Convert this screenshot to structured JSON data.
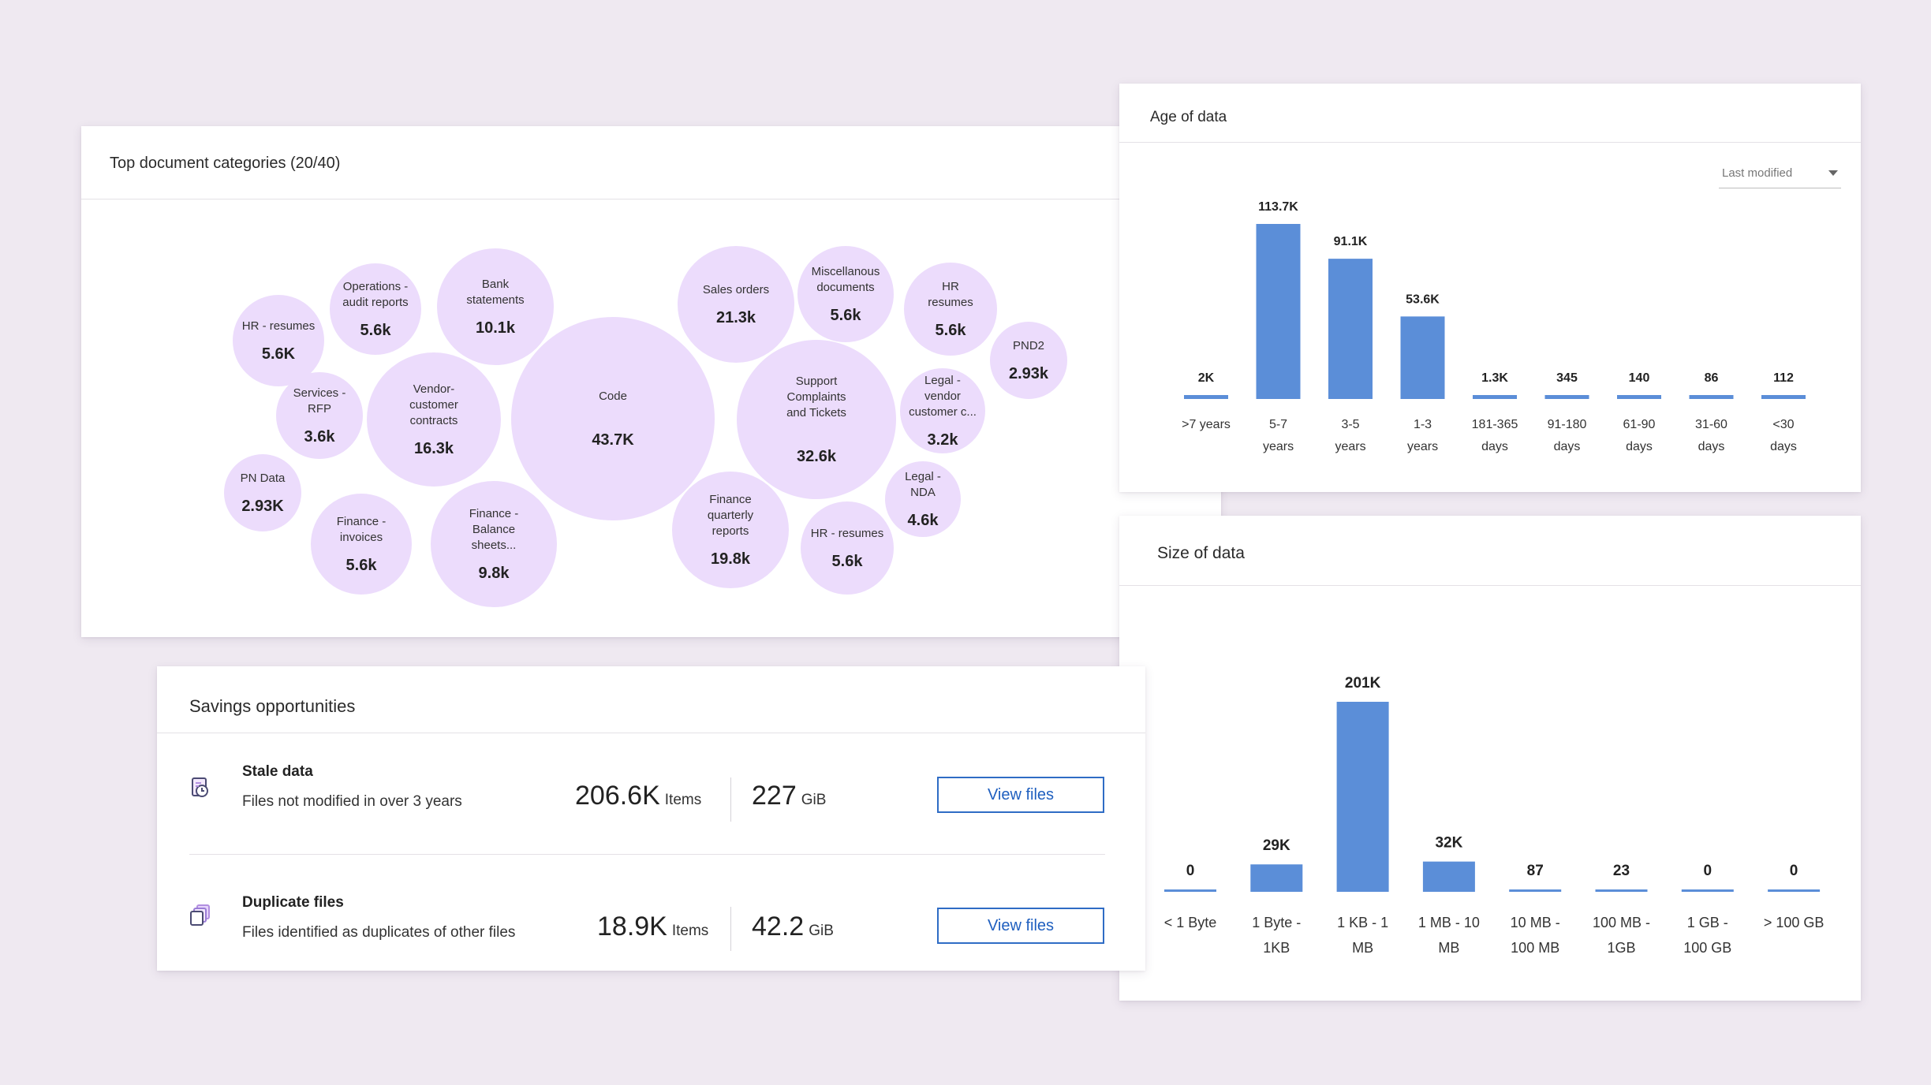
{
  "categories": {
    "title": "Top document categories (20/40)",
    "bubble_color": "#ecdcfc",
    "items": [
      {
        "label": "HR - resumes",
        "value": "5.6K"
      },
      {
        "label": "Operations -\naudit reports",
        "value": "5.6k"
      },
      {
        "label": "Bank\nstatements",
        "value": "10.1k"
      },
      {
        "label": "Services -\nRFP",
        "value": "3.6k"
      },
      {
        "label": "Vendor-\ncustomer\ncontracts",
        "value": "16.3k"
      },
      {
        "label": "Code",
        "value": "43.7K"
      },
      {
        "label": "PN Data",
        "value": "2.93K"
      },
      {
        "label": "Finance -\ninvoices",
        "value": "5.6k"
      },
      {
        "label": "Finance -\nBalance\nsheets...",
        "value": "9.8k"
      },
      {
        "label": "Sales orders",
        "value": "21.3k"
      },
      {
        "label": "Miscellanous\ndocuments",
        "value": "5.6k"
      },
      {
        "label": "HR\nresumes",
        "value": "5.6k"
      },
      {
        "label": "PND2",
        "value": "2.93k"
      },
      {
        "label": "Support\nComplaints\nand Tickets",
        "value": "32.6k"
      },
      {
        "label": "Legal -\nvendor\ncustomer c...",
        "value": "3.2k"
      },
      {
        "label": "Legal -\nNDA",
        "value": "4.6k"
      },
      {
        "label": "Finance\nquarterly\nreports",
        "value": "19.8k"
      },
      {
        "label": "HR - resumes",
        "value": "5.6k"
      }
    ]
  },
  "age": {
    "title": "Age of data",
    "filter": {
      "selected": "Last modified",
      "icon": "chevron-down-icon"
    },
    "chart_data": {
      "type": "bar",
      "categories": [
        ">7 years",
        "5-7 years",
        "3-5 years",
        "1-3 years",
        "181-365 days",
        "91-180 days",
        "61-90 days",
        "31-60 days",
        "<30 days"
      ],
      "category_lines": [
        [
          ">7 years"
        ],
        [
          "5-7",
          "years"
        ],
        [
          "3-5",
          "years"
        ],
        [
          "1-3",
          "years"
        ],
        [
          "181-365",
          "days"
        ],
        [
          "91-180",
          "days"
        ],
        [
          "61-90",
          "days"
        ],
        [
          "31-60",
          "days"
        ],
        [
          "<30",
          "days"
        ]
      ],
      "values": [
        2000,
        113700,
        91100,
        53600,
        1300,
        345,
        140,
        86,
        112
      ],
      "data_labels": [
        "2K",
        "113.7K",
        "91.1K",
        "53.6K",
        "1.3K",
        "345",
        "140",
        "86",
        "112"
      ],
      "ylim": [
        0,
        113700
      ],
      "bar_color": "#5b8ed8",
      "grid": false
    }
  },
  "size": {
    "title": "Size of data",
    "chart_data": {
      "type": "bar",
      "categories": [
        "< 1 Byte",
        "1 Byte - 1KB",
        "1 KB - 1 MB",
        "1 MB - 10 MB",
        "10 MB - 100 MB",
        "100 MB - 1GB",
        "1 GB - 100 GB",
        "> 100 GB"
      ],
      "category_lines": [
        [
          "< 1 Byte"
        ],
        [
          "1 Byte -",
          "1KB"
        ],
        [
          "1 KB - 1",
          "MB"
        ],
        [
          "1 MB - 10",
          "MB"
        ],
        [
          "10 MB -",
          "100 MB"
        ],
        [
          "100 MB -",
          "1GB"
        ],
        [
          "1 GB -",
          "100 GB"
        ],
        [
          "> 100 GB"
        ]
      ],
      "values": [
        0,
        29000,
        201000,
        32000,
        87,
        23,
        0,
        0
      ],
      "data_labels": [
        "0",
        "29K",
        "201K",
        "32K",
        "87",
        "23",
        "0",
        "0"
      ],
      "ylim": [
        0,
        201000
      ],
      "bar_color": "#5b8ed8",
      "grid": false
    }
  },
  "savings": {
    "title": "Savings opportunities",
    "rows": [
      {
        "icon": "stale-data-icon",
        "name": "Stale data",
        "description": "Files not modified in over 3 years",
        "items_value": "206.6K",
        "items_unit": "Items",
        "size_value": "227",
        "size_unit": "GiB",
        "button": "View files"
      },
      {
        "icon": "duplicate-files-icon",
        "name": "Duplicate files",
        "description": "Files identified as duplicates of other files",
        "items_value": "18.9K",
        "items_unit": "Items",
        "size_value": "42.2",
        "size_unit": "GiB",
        "button": "View files"
      }
    ],
    "button_color": "#2f6cc5"
  }
}
